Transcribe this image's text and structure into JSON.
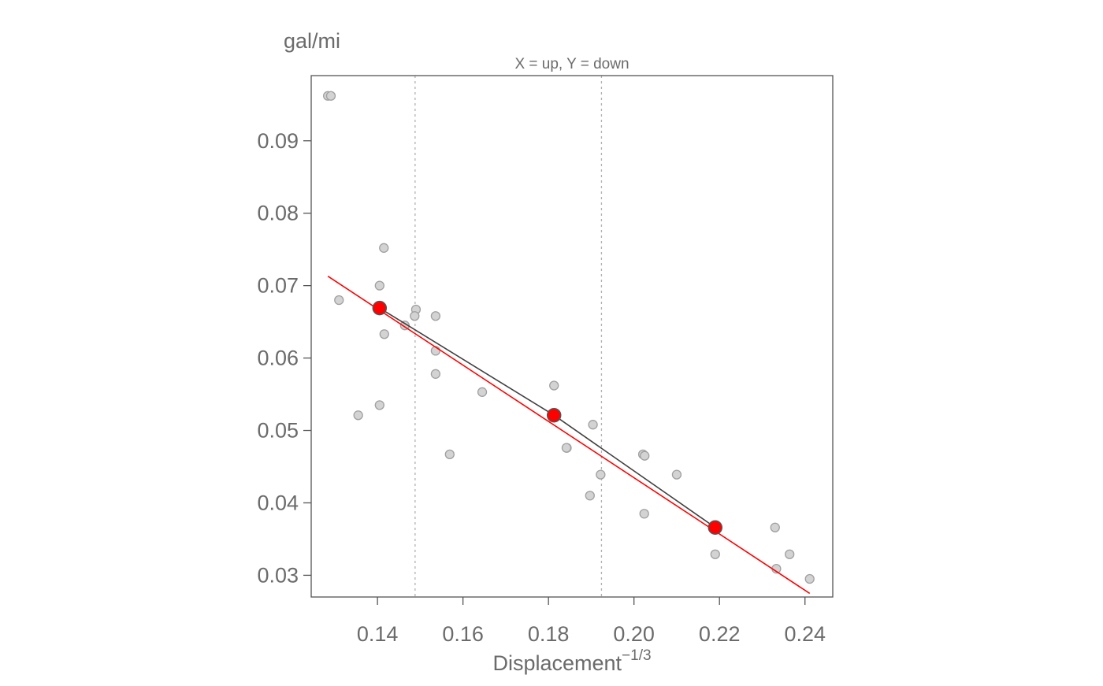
{
  "chart_data": {
    "type": "scatter",
    "subtitle": "X = up, Y = down",
    "xlabel": "Displacement",
    "xlabel_superscript": "−1/3",
    "ylabel": "gal/mi",
    "xlim": [
      0.1245,
      0.2465
    ],
    "ylim": [
      0.027,
      0.099
    ],
    "xticks": [
      0.14,
      0.16,
      0.18,
      0.2,
      0.22,
      0.24
    ],
    "xtick_labels": [
      "0.14",
      "0.16",
      "0.18",
      "0.20",
      "0.22",
      "0.24"
    ],
    "yticks": [
      0.03,
      0.04,
      0.05,
      0.06,
      0.07,
      0.08,
      0.09
    ],
    "ytick_labels": [
      "0.03",
      "0.04",
      "0.05",
      "0.06",
      "0.07",
      "0.08",
      "0.09"
    ],
    "grid": false,
    "points": [
      [
        0.1284,
        0.0962
      ],
      [
        0.1291,
        0.0962
      ],
      [
        0.1415,
        0.0752
      ],
      [
        0.1405,
        0.07
      ],
      [
        0.131,
        0.068
      ],
      [
        0.149,
        0.0667
      ],
      [
        0.1487,
        0.0658
      ],
      [
        0.1536,
        0.0658
      ],
      [
        0.1464,
        0.0645
      ],
      [
        0.1416,
        0.0633
      ],
      [
        0.1536,
        0.061
      ],
      [
        0.1536,
        0.0578
      ],
      [
        0.1645,
        0.0553
      ],
      [
        0.1405,
        0.0535
      ],
      [
        0.1355,
        0.0521
      ],
      [
        0.1569,
        0.0467
      ],
      [
        0.1813,
        0.0562
      ],
      [
        0.1904,
        0.0508
      ],
      [
        0.1843,
        0.0476
      ],
      [
        0.1842,
        0.0476
      ],
      [
        0.2021,
        0.0467
      ],
      [
        0.2025,
        0.0465
      ],
      [
        0.1922,
        0.0439
      ],
      [
        0.21,
        0.0439
      ],
      [
        0.1897,
        0.041
      ],
      [
        0.2024,
        0.0385
      ],
      [
        0.233,
        0.0366
      ],
      [
        0.219,
        0.0329
      ],
      [
        0.2364,
        0.0329
      ],
      [
        0.2333,
        0.0309
      ],
      [
        0.2411,
        0.0295
      ]
    ],
    "tertile_boundaries": [
      0.1488,
      0.1924
    ],
    "median_points": [
      [
        0.1405,
        0.0669
      ],
      [
        0.1813,
        0.0521
      ],
      [
        0.219,
        0.0366
      ]
    ],
    "fit_line": {
      "x": [
        0.1284,
        0.2411
      ],
      "y": [
        0.0713,
        0.0275
      ]
    },
    "colors": {
      "points_fill": "#d3d3d3",
      "points_stroke": "#a0a0a0",
      "median_fill": "#ff0000",
      "median_stroke": "#555555",
      "median_line": "#404040",
      "fit_line": "#ff0000",
      "boundary": "#b0b0b0",
      "frame": "#555555",
      "text": "#6b6b6b"
    }
  }
}
